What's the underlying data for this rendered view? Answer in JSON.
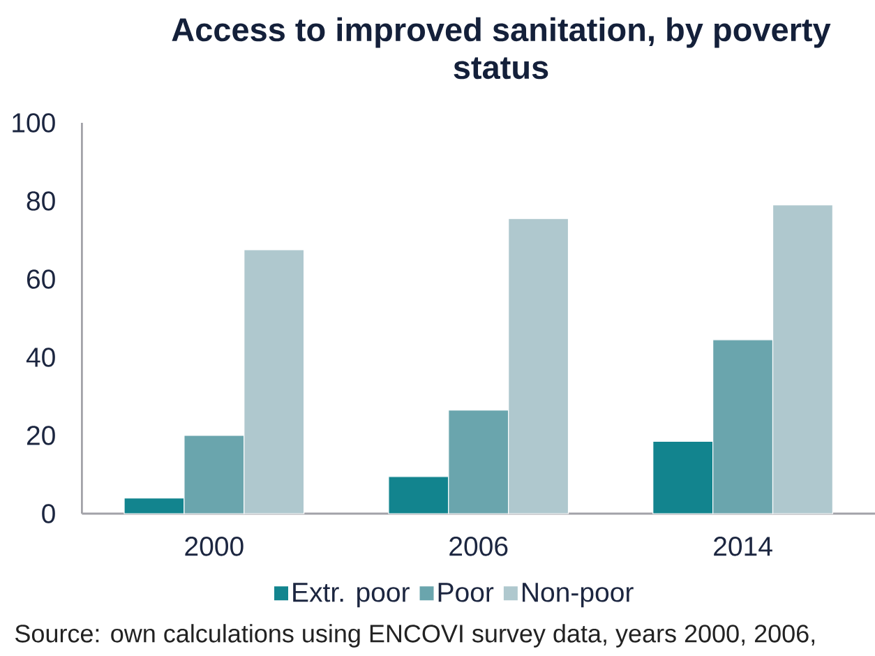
{
  "chart_data": {
    "type": "bar",
    "title": "Access to improved sanitation, by poverty status",
    "categories": [
      "2000",
      "2006",
      "2014"
    ],
    "series": [
      {
        "name": "Extr. poor",
        "color": "#12848e",
        "values": [
          4,
          9.5,
          18.5
        ]
      },
      {
        "name": "Poor",
        "color": "#6aa5ad",
        "values": [
          20,
          26.5,
          44.5
        ]
      },
      {
        "name": "Non-poor",
        "color": "#afc8ce",
        "values": [
          67.5,
          75.5,
          79
        ]
      }
    ],
    "ylim": [
      0,
      100
    ],
    "yticks": [
      0,
      20,
      40,
      60,
      80,
      100
    ],
    "legend": "bottom",
    "annotations": [
      "Source: own calculations using ENCOVI survey data, years 2000, 2006,"
    ]
  }
}
